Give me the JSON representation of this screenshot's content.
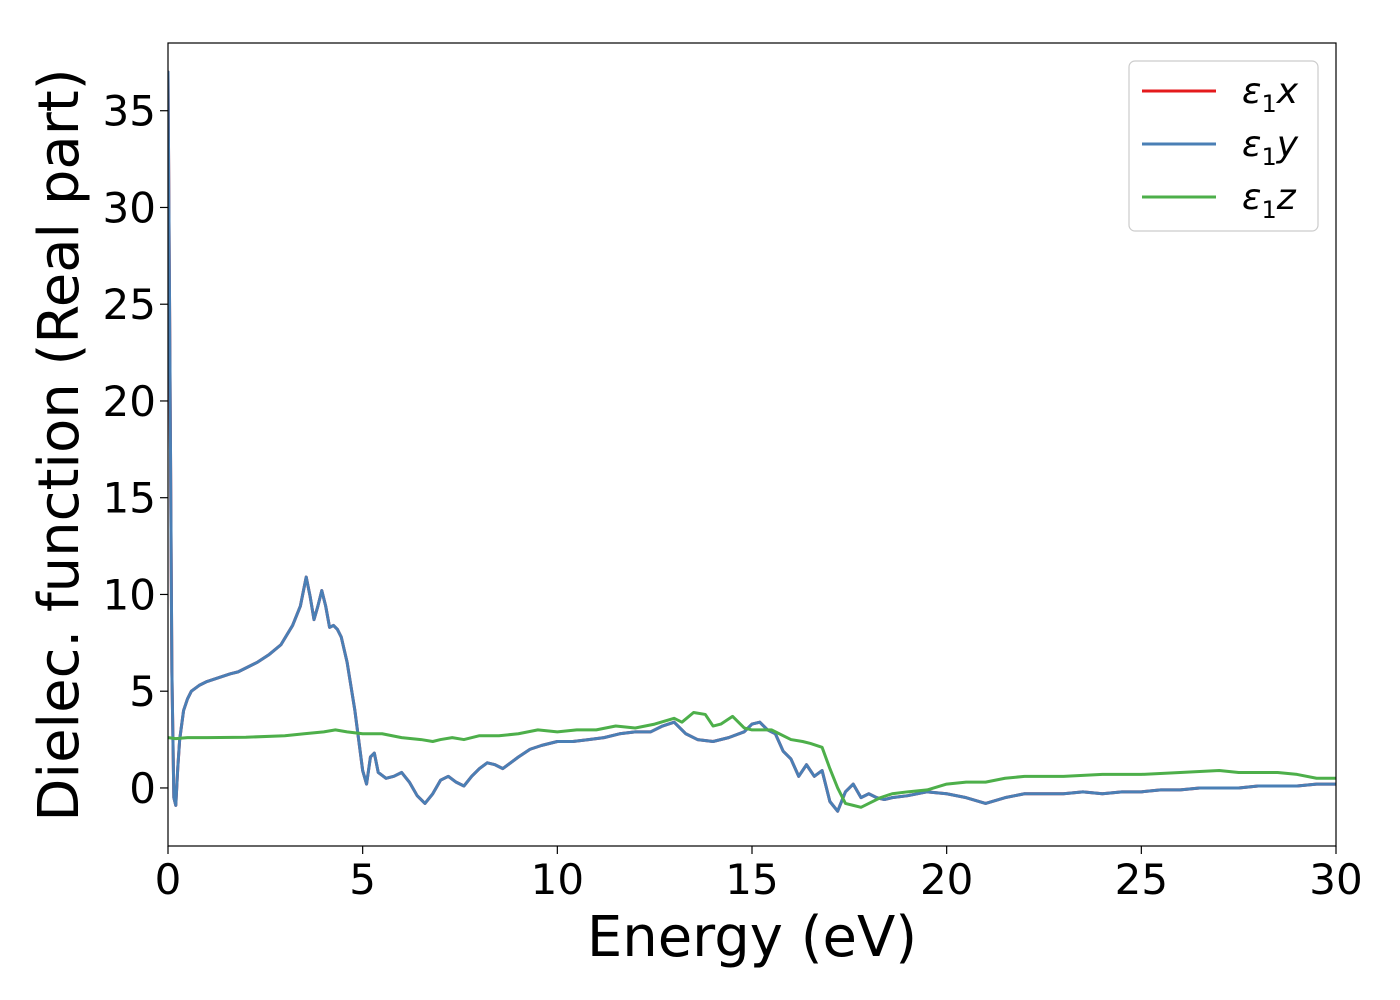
{
  "chart_data": {
    "type": "line",
    "xlabel": "Energy (eV)",
    "ylabel": "Dielec. function (Real part)",
    "xlim": [
      0,
      30
    ],
    "ylim": [
      -3,
      38.5
    ],
    "xticks": [
      0,
      5,
      10,
      15,
      20,
      25,
      30
    ],
    "yticks": [
      0,
      5,
      10,
      15,
      20,
      25,
      30,
      35
    ],
    "legend_position": "top-right",
    "grid": false,
    "series": [
      {
        "name": "ε₁x",
        "legend_base": "ε",
        "legend_sub": "1",
        "legend_suffix": "x",
        "color": "#e41a1c",
        "x": [
          0,
          0.05,
          0.1,
          0.15,
          0.2,
          0.25,
          0.3,
          0.4,
          0.5,
          0.6,
          0.8,
          1.0,
          1.3,
          1.6,
          1.8,
          2.0,
          2.3,
          2.6,
          2.9,
          3.2,
          3.4,
          3.55,
          3.65,
          3.75,
          3.85,
          3.95,
          4.05,
          4.15,
          4.25,
          4.35,
          4.45,
          4.6,
          4.8,
          5.0,
          5.1,
          5.2,
          5.3,
          5.4,
          5.6,
          5.8,
          6.0,
          6.2,
          6.4,
          6.6,
          6.8,
          7.0,
          7.2,
          7.4,
          7.6,
          7.8,
          8.0,
          8.2,
          8.4,
          8.6,
          8.8,
          9.0,
          9.3,
          9.6,
          10.0,
          10.4,
          10.8,
          11.2,
          11.6,
          12.0,
          12.4,
          12.7,
          13.0,
          13.3,
          13.6,
          14.0,
          14.4,
          14.8,
          15.0,
          15.2,
          15.4,
          15.6,
          15.8,
          16.0,
          16.2,
          16.4,
          16.6,
          16.8,
          17.0,
          17.2,
          17.4,
          17.6,
          17.8,
          18.0,
          18.2,
          18.4,
          18.6,
          19.0,
          19.5,
          20.0,
          20.5,
          21.0,
          21.5,
          22.0,
          22.5,
          23.0,
          23.5,
          24.0,
          24.5,
          25.0,
          25.5,
          26.0,
          26.5,
          27.0,
          27.5,
          28.0,
          28.5,
          29.0,
          29.5,
          30.0
        ],
        "y": [
          37,
          22,
          6,
          -0.5,
          -0.9,
          1.0,
          2.5,
          4.0,
          4.6,
          5.0,
          5.3,
          5.5,
          5.7,
          5.9,
          6.0,
          6.2,
          6.5,
          6.9,
          7.4,
          8.4,
          9.4,
          10.9,
          9.9,
          8.7,
          9.4,
          10.2,
          9.4,
          8.3,
          8.4,
          8.2,
          7.8,
          6.5,
          4.0,
          0.9,
          0.2,
          1.6,
          1.8,
          0.8,
          0.5,
          0.6,
          0.8,
          0.3,
          -0.4,
          -0.8,
          -0.3,
          0.4,
          0.6,
          0.3,
          0.1,
          0.6,
          1.0,
          1.3,
          1.2,
          1.0,
          1.3,
          1.6,
          2.0,
          2.2,
          2.4,
          2.4,
          2.5,
          2.6,
          2.8,
          2.9,
          2.9,
          3.2,
          3.4,
          2.8,
          2.5,
          2.4,
          2.6,
          2.9,
          3.3,
          3.4,
          3.0,
          2.8,
          1.9,
          1.5,
          0.6,
          1.2,
          0.6,
          0.9,
          -0.7,
          -1.2,
          -0.2,
          0.2,
          -0.5,
          -0.3,
          -0.5,
          -0.6,
          -0.5,
          -0.4,
          -0.2,
          -0.3,
          -0.5,
          -0.8,
          -0.5,
          -0.3,
          -0.3,
          -0.3,
          -0.2,
          -0.3,
          -0.2,
          -0.2,
          -0.1,
          -0.1,
          0.0,
          0.0,
          0.0,
          0.1,
          0.1,
          0.1,
          0.2,
          0.2
        ]
      },
      {
        "name": "ε₁y",
        "legend_base": "ε",
        "legend_sub": "1",
        "legend_suffix": "y",
        "color": "#4a7fb5",
        "x": [
          0,
          0.05,
          0.1,
          0.15,
          0.2,
          0.25,
          0.3,
          0.4,
          0.5,
          0.6,
          0.8,
          1.0,
          1.3,
          1.6,
          1.8,
          2.0,
          2.3,
          2.6,
          2.9,
          3.2,
          3.4,
          3.55,
          3.65,
          3.75,
          3.85,
          3.95,
          4.05,
          4.15,
          4.25,
          4.35,
          4.45,
          4.6,
          4.8,
          5.0,
          5.1,
          5.2,
          5.3,
          5.4,
          5.6,
          5.8,
          6.0,
          6.2,
          6.4,
          6.6,
          6.8,
          7.0,
          7.2,
          7.4,
          7.6,
          7.8,
          8.0,
          8.2,
          8.4,
          8.6,
          8.8,
          9.0,
          9.3,
          9.6,
          10.0,
          10.4,
          10.8,
          11.2,
          11.6,
          12.0,
          12.4,
          12.7,
          13.0,
          13.3,
          13.6,
          14.0,
          14.4,
          14.8,
          15.0,
          15.2,
          15.4,
          15.6,
          15.8,
          16.0,
          16.2,
          16.4,
          16.6,
          16.8,
          17.0,
          17.2,
          17.4,
          17.6,
          17.8,
          18.0,
          18.2,
          18.4,
          18.6,
          19.0,
          19.5,
          20.0,
          20.5,
          21.0,
          21.5,
          22.0,
          22.5,
          23.0,
          23.5,
          24.0,
          24.5,
          25.0,
          25.5,
          26.0,
          26.5,
          27.0,
          27.5,
          28.0,
          28.5,
          29.0,
          29.5,
          30.0
        ],
        "y": [
          37,
          22,
          6,
          -0.5,
          -0.9,
          1.0,
          2.5,
          4.0,
          4.6,
          5.0,
          5.3,
          5.5,
          5.7,
          5.9,
          6.0,
          6.2,
          6.5,
          6.9,
          7.4,
          8.4,
          9.4,
          10.9,
          9.9,
          8.7,
          9.4,
          10.2,
          9.4,
          8.3,
          8.4,
          8.2,
          7.8,
          6.5,
          4.0,
          0.9,
          0.2,
          1.6,
          1.8,
          0.8,
          0.5,
          0.6,
          0.8,
          0.3,
          -0.4,
          -0.8,
          -0.3,
          0.4,
          0.6,
          0.3,
          0.1,
          0.6,
          1.0,
          1.3,
          1.2,
          1.0,
          1.3,
          1.6,
          2.0,
          2.2,
          2.4,
          2.4,
          2.5,
          2.6,
          2.8,
          2.9,
          2.9,
          3.2,
          3.4,
          2.8,
          2.5,
          2.4,
          2.6,
          2.9,
          3.3,
          3.4,
          3.0,
          2.8,
          1.9,
          1.5,
          0.6,
          1.2,
          0.6,
          0.9,
          -0.7,
          -1.2,
          -0.2,
          0.2,
          -0.5,
          -0.3,
          -0.5,
          -0.6,
          -0.5,
          -0.4,
          -0.2,
          -0.3,
          -0.5,
          -0.8,
          -0.5,
          -0.3,
          -0.3,
          -0.3,
          -0.2,
          -0.3,
          -0.2,
          -0.2,
          -0.1,
          -0.1,
          0.0,
          0.0,
          0.0,
          0.1,
          0.1,
          0.1,
          0.2,
          0.2
        ]
      },
      {
        "name": "ε₁z",
        "legend_base": "ε",
        "legend_sub": "1",
        "legend_suffix": "z",
        "color": "#4daf4a",
        "x": [
          0,
          0.2,
          0.5,
          1.0,
          2.0,
          3.0,
          3.5,
          4.0,
          4.3,
          4.6,
          5.0,
          5.5,
          6.0,
          6.5,
          6.8,
          7.0,
          7.3,
          7.6,
          8.0,
          8.5,
          9.0,
          9.5,
          10.0,
          10.5,
          11.0,
          11.5,
          12.0,
          12.5,
          13.0,
          13.2,
          13.5,
          13.8,
          14.0,
          14.2,
          14.5,
          14.8,
          15.0,
          15.5,
          16.0,
          16.3,
          16.5,
          16.8,
          17.0,
          17.2,
          17.4,
          17.6,
          17.8,
          18.0,
          18.3,
          18.6,
          19.0,
          19.5,
          20.0,
          20.5,
          21.0,
          21.5,
          22.0,
          23.0,
          24.0,
          25.0,
          26.0,
          27.0,
          27.5,
          28.0,
          28.5,
          29.0,
          29.5,
          30.0
        ],
        "y": [
          2.6,
          2.55,
          2.6,
          2.6,
          2.62,
          2.7,
          2.8,
          2.9,
          3.0,
          2.9,
          2.8,
          2.8,
          2.6,
          2.5,
          2.4,
          2.5,
          2.6,
          2.5,
          2.7,
          2.7,
          2.8,
          3.0,
          2.9,
          3.0,
          3.0,
          3.2,
          3.1,
          3.3,
          3.6,
          3.4,
          3.9,
          3.8,
          3.2,
          3.3,
          3.7,
          3.1,
          3.0,
          3.0,
          2.5,
          2.4,
          2.3,
          2.1,
          1.0,
          0.0,
          -0.8,
          -0.9,
          -1.0,
          -0.8,
          -0.5,
          -0.3,
          -0.2,
          -0.1,
          0.2,
          0.3,
          0.3,
          0.5,
          0.6,
          0.6,
          0.7,
          0.7,
          0.8,
          0.9,
          0.8,
          0.8,
          0.8,
          0.7,
          0.5,
          0.5
        ]
      }
    ]
  }
}
